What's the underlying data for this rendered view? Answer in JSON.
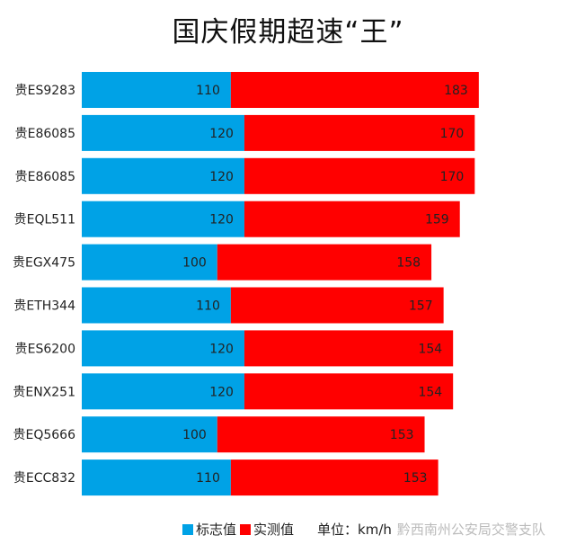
{
  "chart_data": {
    "type": "bar",
    "orientation": "horizontal",
    "stacked": true,
    "title": "国庆假期超速“王”",
    "categories": [
      "贵ES9283",
      "贵E86085",
      "贵E86085",
      "贵EQL511",
      "贵EGX475",
      "贵ETH344",
      "贵ES6200",
      "贵ENX251",
      "贵EQ5666",
      "贵ECC832"
    ],
    "series": [
      {
        "name": "标志值",
        "color": "#00a2e6",
        "values": [
          110,
          120,
          120,
          120,
          100,
          110,
          120,
          120,
          100,
          110
        ]
      },
      {
        "name": "实测值",
        "color": "#ff0000",
        "values": [
          183,
          170,
          170,
          159,
          158,
          157,
          154,
          154,
          153,
          153
        ]
      }
    ],
    "grid": false,
    "legend": "bottom",
    "unit_label": "单位：km/h"
  },
  "watermark": "黔西南州公安局交警支队"
}
